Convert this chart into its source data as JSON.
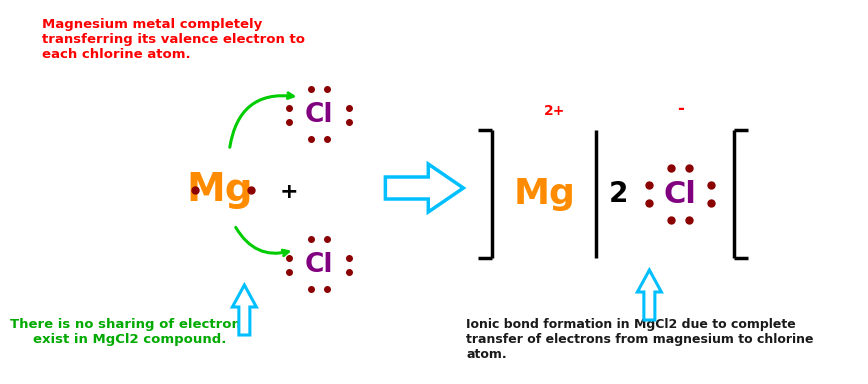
{
  "bg_color": "#ffffff",
  "mg_color": "#FF8C00",
  "cl_color": "#800080",
  "electron_color": "#8B0000",
  "arrow_green": "#00CC00",
  "arrow_blue": "#00BFFF",
  "bracket_color": "#000000",
  "red_text_color": "#FF0000",
  "green_text_color": "#00AA00",
  "dark_text_color": "#1a1a1a",
  "charge_color": "#FF0000",
  "title_text": "Magnesium metal completely\ntransferring its valence electron to\neach chlorine atom.",
  "bottom_left_text": "There is no sharing of electrons\nexist in MgCl2 compound.",
  "bottom_right_text": "Ionic bond formation in MgCl2 due to complete\ntransfer of electrons from magnesium to chlorine\natom."
}
